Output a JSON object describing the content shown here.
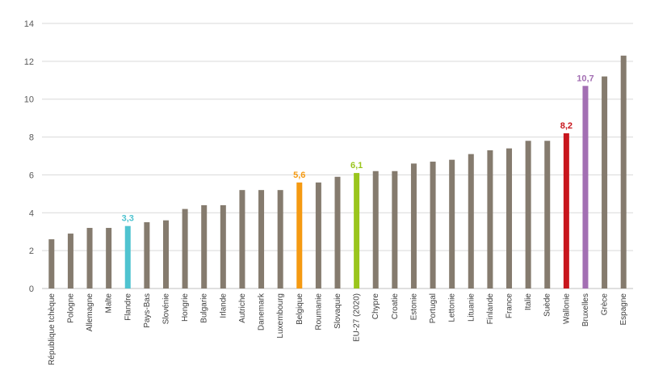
{
  "chart_data": {
    "type": "bar",
    "categories": [
      "République tchèque",
      "Pologne",
      "Allemagne",
      "Malte",
      "Flandre",
      "Pays-Bas",
      "Slovénie",
      "Hongrie",
      "Bulgarie",
      "Irlande",
      "Autriche",
      "Danemark",
      "Luxembourg",
      "Belgique",
      "Roumanie",
      "Slovaquie",
      "EU-27 (2020)",
      "Chypre",
      "Croatie",
      "Estonie",
      "Portugal",
      "Lettonie",
      "Lituanie",
      "Finlande",
      "France",
      "Italie",
      "Suède",
      "Wallonie",
      "Bruxelles",
      "Grèce",
      "Espagne"
    ],
    "values": [
      2.6,
      2.9,
      3.2,
      3.2,
      3.3,
      3.5,
      3.6,
      4.2,
      4.4,
      4.4,
      5.2,
      5.2,
      5.2,
      5.6,
      5.6,
      5.9,
      6.1,
      6.2,
      6.2,
      6.6,
      6.7,
      6.8,
      7.1,
      7.3,
      7.4,
      7.8,
      7.8,
      8.2,
      10.7,
      11.2,
      12.3
    ],
    "ylim": [
      0,
      14
    ],
    "y_ticks": [
      "0",
      "2",
      "4",
      "6",
      "8",
      "10",
      "12",
      "14"
    ],
    "grid": true,
    "default_color": "#857b6e",
    "highlights": [
      {
        "category": "Flandre",
        "label": "3,3",
        "color": "#4fc3d0"
      },
      {
        "category": "Belgique",
        "label": "5,6",
        "color": "#f59a12"
      },
      {
        "category": "EU-27 (2020)",
        "label": "6,1",
        "color": "#9ac51c"
      },
      {
        "category": "Wallonie",
        "label": "8,2",
        "color": "#c8161d"
      },
      {
        "category": "Bruxelles",
        "label": "10,7",
        "color": "#a36fb3"
      }
    ]
  }
}
